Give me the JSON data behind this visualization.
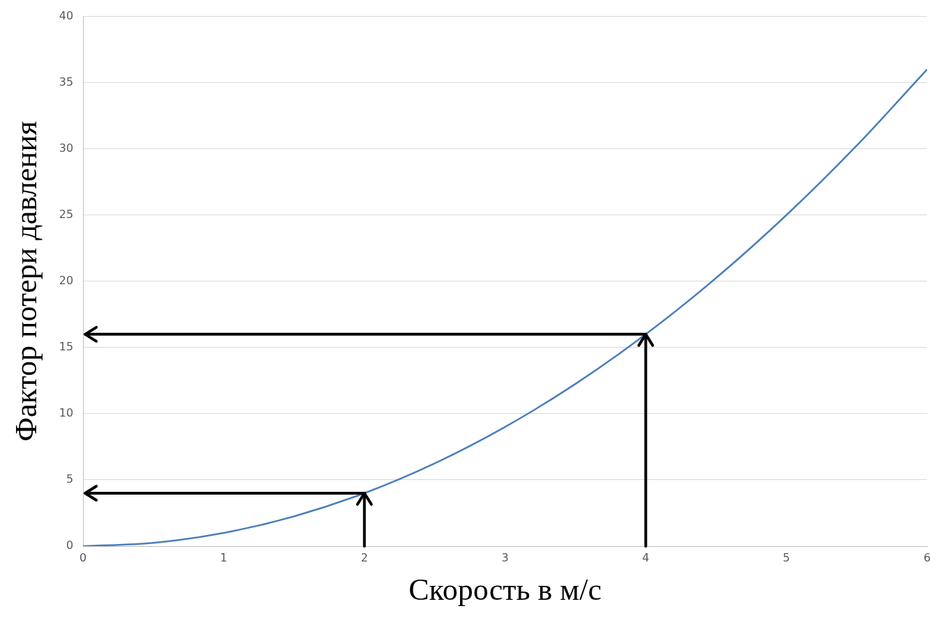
{
  "chart_data": {
    "type": "line",
    "xlabel": "Скорость в м/с",
    "ylabel": "Фактор потери давления",
    "x": [
      0,
      0.5,
      1,
      1.5,
      2,
      2.5,
      3,
      3.5,
      4,
      4.5,
      5,
      5.5,
      6
    ],
    "series": [
      {
        "color": "#4a7ebb",
        "values": [
          0,
          0.25,
          1,
          2.25,
          4,
          6.25,
          9,
          12.25,
          16,
          20.25,
          25,
          30.25,
          36
        ]
      }
    ],
    "xlim": [
      0,
      6
    ],
    "xticks": [
      0,
      1,
      2,
      3,
      4,
      5,
      6
    ],
    "ylim": [
      0,
      40
    ],
    "yticks": [
      0,
      5,
      10,
      15,
      20,
      25,
      30,
      35,
      40
    ],
    "ref_lines": [
      {
        "axis": "x",
        "value": 2,
        "color": "#000000"
      },
      {
        "axis": "y",
        "value": 4,
        "color": "#000000"
      },
      {
        "axis": "x",
        "value": 4,
        "color": "#000000"
      },
      {
        "axis": "y",
        "value": 16,
        "color": "#000000"
      }
    ],
    "grid": "y",
    "legend": false,
    "marker": "none",
    "line_style": "solid"
  }
}
